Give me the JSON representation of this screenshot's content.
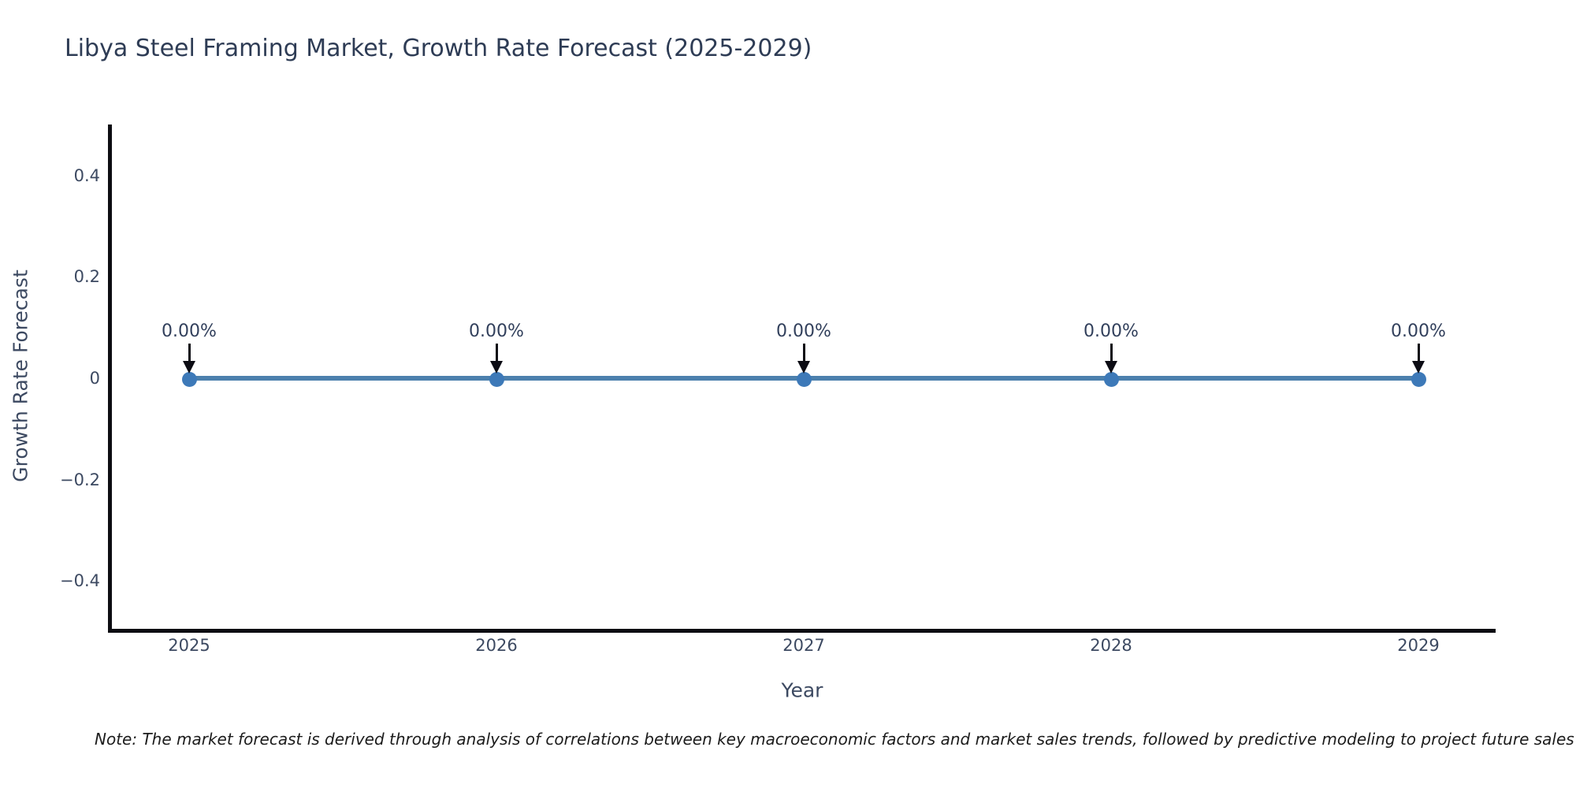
{
  "chart_data": {
    "type": "line",
    "title": "Libya Steel Framing Market, Growth Rate Forecast (2025-2029)",
    "xlabel": "Year",
    "ylabel": "Growth Rate Forecast",
    "x": [
      2025,
      2026,
      2027,
      2028,
      2029
    ],
    "series": [
      {
        "name": "Growth Rate Forecast",
        "values": [
          0,
          0,
          0,
          0,
          0
        ]
      }
    ],
    "point_labels": [
      "0.00%",
      "0.00%",
      "0.00%",
      "0.00%",
      "0.00%"
    ],
    "xtick_labels": [
      "2025",
      "2026",
      "2027",
      "2028",
      "2029"
    ],
    "yticks": [
      {
        "value": 0.4,
        "label": "0.4"
      },
      {
        "value": 0.2,
        "label": "0.2"
      },
      {
        "value": 0,
        "label": "0"
      },
      {
        "value": -0.2,
        "label": "−0.2"
      },
      {
        "value": -0.4,
        "label": "−0.4"
      }
    ],
    "ylim": [
      -0.5,
      0.5
    ],
    "grid": false,
    "legend": "none",
    "line_color": "#4c80ad",
    "marker_color": "#3d79b8",
    "arrow_color": "#0c0c14"
  },
  "note": "Note: The market forecast is derived through analysis of correlations between key macroeconomic factors and market sales trends, followed by predictive modeling to project future sales",
  "colors": {
    "background": "#ffffff",
    "title_text": "#2e3c55",
    "tick_text": "#3c4961",
    "spine": "#0d0d12",
    "note_text": "#1c1c1c"
  }
}
